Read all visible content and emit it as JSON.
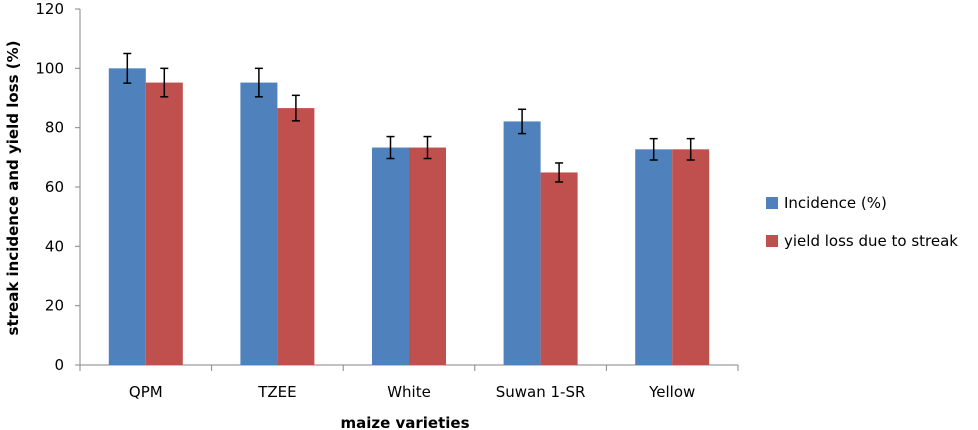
{
  "chart_data": {
    "type": "bar",
    "categories": [
      "QPM",
      "TZEE",
      "White",
      "Suwan 1-SR",
      "Yellow"
    ],
    "series": [
      {
        "name": "Incidence (%)",
        "color": "#4F81BD",
        "values": [
          100,
          95.2,
          73.3,
          82.1,
          72.7
        ],
        "errors": [
          5,
          4.8,
          3.7,
          4.1,
          3.6
        ]
      },
      {
        "name": "yield loss due to streak",
        "color": "#C0504D",
        "values": [
          95.2,
          86.6,
          73.3,
          64.9,
          72.7
        ],
        "errors": [
          4.8,
          4.3,
          3.7,
          3.2,
          3.6
        ]
      }
    ],
    "xlabel": "maize varieties",
    "ylabel": "streak incidence and yield loss (%)",
    "ylim": [
      0,
      120
    ],
    "yticks": [
      0,
      20,
      40,
      60,
      80,
      100,
      120
    ],
    "legend_position": "right",
    "grid": false
  }
}
